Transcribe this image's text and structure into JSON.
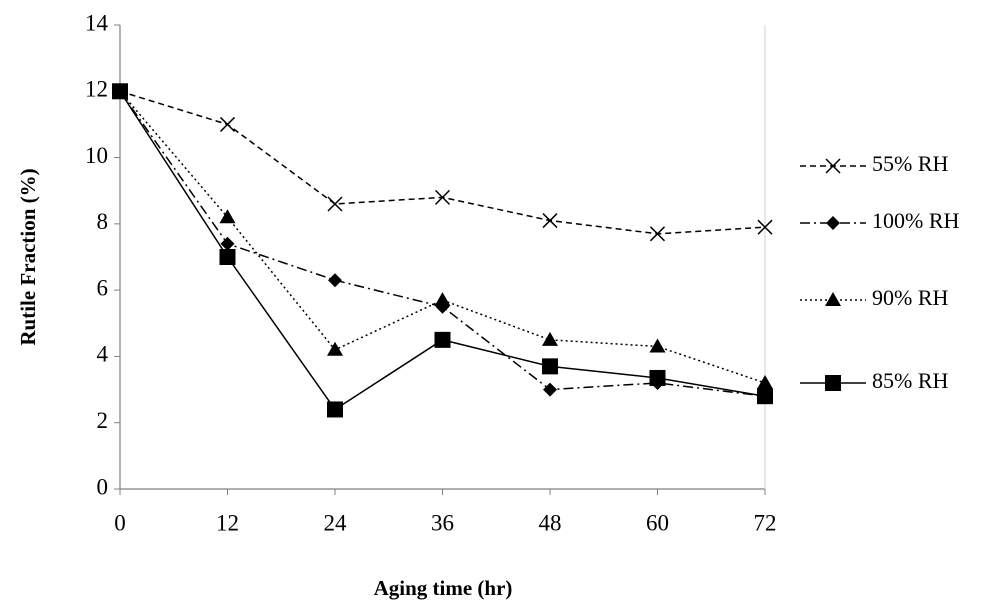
{
  "chart_data": {
    "type": "line",
    "xlabel": "Aging time (hr)",
    "ylabel": "Rutile Fraction (%)",
    "x": [
      0,
      12,
      24,
      36,
      48,
      60,
      72
    ],
    "xlim": [
      0,
      72
    ],
    "xticks": [
      0,
      12,
      24,
      36,
      48,
      60,
      72
    ],
    "ylim": [
      0,
      14
    ],
    "yticks": [
      0,
      2,
      4,
      6,
      8,
      10,
      12,
      14
    ],
    "grid": false,
    "legend": "right",
    "series": [
      {
        "name": "55% RH",
        "color": "#000000",
        "dash": "dashed",
        "marker": "x",
        "values": [
          12,
          11,
          8.6,
          8.8,
          8.1,
          7.7,
          7.9
        ]
      },
      {
        "name": "100% RH",
        "color": "#000000",
        "dash": "dashdot",
        "marker": "diamond",
        "values": [
          12,
          7.4,
          6.3,
          5.5,
          3.0,
          3.2,
          2.8
        ]
      },
      {
        "name": "90% RH",
        "color": "#000000",
        "dash": "dotted",
        "marker": "triangle",
        "values": [
          12,
          8.2,
          4.2,
          5.7,
          4.5,
          4.3,
          3.2
        ]
      },
      {
        "name": "85% RH",
        "color": "#000000",
        "dash": "solid",
        "marker": "square",
        "values": [
          12,
          7.0,
          2.4,
          4.5,
          3.7,
          3.35,
          2.8
        ]
      }
    ]
  }
}
